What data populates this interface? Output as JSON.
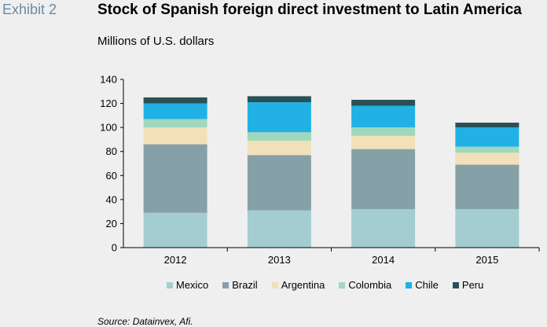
{
  "header": {
    "exhibit": "Exhibit 2",
    "title": "Stock of Spanish foreign direct investment to Latin America",
    "subtitle": "Millions of U.S. dollars"
  },
  "source": "Source: Datainvex, Afi.",
  "chart_data": {
    "type": "bar",
    "stacked": true,
    "categories": [
      "2012",
      "2013",
      "2014",
      "2015"
    ],
    "series": [
      {
        "name": "Mexico",
        "color": "#a3cdd1",
        "values": [
          29,
          31,
          32,
          32
        ]
      },
      {
        "name": "Brazil",
        "color": "#86a0a8",
        "values": [
          57,
          46,
          50,
          37
        ]
      },
      {
        "name": "Argentina",
        "color": "#f1e0b9",
        "values": [
          14,
          12,
          11,
          10
        ]
      },
      {
        "name": "Colombia",
        "color": "#9fd8bd",
        "values": [
          7,
          7,
          7,
          5
        ]
      },
      {
        "name": "Chile",
        "color": "#21b1e5",
        "values": [
          13,
          25,
          18,
          16
        ]
      },
      {
        "name": "Peru",
        "color": "#2b5055",
        "values": [
          5,
          5,
          5,
          4
        ]
      }
    ],
    "ylim": [
      0,
      140
    ],
    "yticks": [
      "0",
      "20",
      "40",
      "60",
      "80",
      "100",
      "120",
      "140"
    ],
    "grid": false,
    "legend_position": "bottom"
  }
}
